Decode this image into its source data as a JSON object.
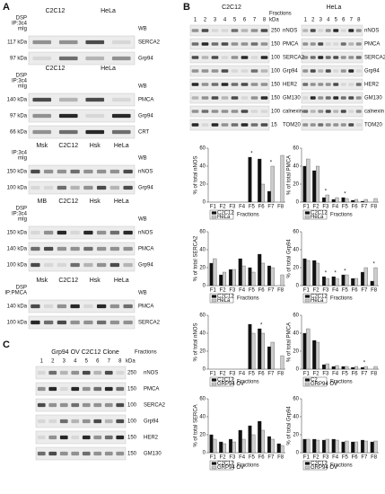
{
  "panel_a": {
    "label": "A",
    "blocks": [
      {
        "headers": [
          "C2C12",
          "HeLa"
        ],
        "rows": [
          "DSP",
          "IP:3c4",
          "mIg"
        ],
        "wb": "WB",
        "blots": [
          {
            "kda": "117 kDa",
            "name": "SERCA2"
          },
          {
            "kda": "97 kDa",
            "name": "Grp94"
          }
        ]
      },
      {
        "headers": [
          "C2C12",
          "HeLa"
        ],
        "rows": [
          "DSP",
          "IP:3c4",
          "mIg"
        ],
        "wb": "WB",
        "blots": [
          {
            "kda": "140 kDa",
            "name": "PMCA"
          },
          {
            "kda": "97 kDa",
            "name": "Grp94"
          },
          {
            "kda": "66 kDa",
            "name": "CRT"
          }
        ]
      },
      {
        "headers": [
          "Msk",
          "C2C12",
          "Hsk",
          "HeLa"
        ],
        "rows": [
          "IP:3c4",
          "mIg"
        ],
        "wb": "WB",
        "blots": [
          {
            "kda": "150 kDa",
            "name": "nNOS"
          },
          {
            "kda": "100 kDa",
            "name": "Grp94"
          }
        ]
      },
      {
        "headers": [
          "MB",
          "C2C12",
          "Hsk",
          "HeLa"
        ],
        "rows": [
          "DSP",
          "IP:3c4",
          "mIg"
        ],
        "wb": "WB",
        "blots": [
          {
            "kda": "150 kDa",
            "name": "nNOS"
          },
          {
            "kda": "140 kDa",
            "name": "PMCA"
          },
          {
            "kda": "100 kDa",
            "name": "Grp94"
          }
        ]
      },
      {
        "headers": [
          "Msk",
          "C2C12",
          "Hsk",
          "HeLa"
        ],
        "rows": [
          "DSP",
          "IP:PMCA"
        ],
        "wb": "WB",
        "blots": [
          {
            "kda": "140 kDa",
            "name": "PMCA"
          },
          {
            "kda": "100 kDa",
            "name": "SERCA2"
          }
        ]
      }
    ]
  },
  "panel_b": {
    "label": "B",
    "headers": [
      "C2C12",
      "HeLa"
    ],
    "fractions": "Fractions",
    "kda": "kDa",
    "lanes": [
      "1",
      "2",
      "3",
      "4",
      "5",
      "6",
      "7",
      "8"
    ],
    "blots": [
      {
        "kda": "250",
        "name": "nNOS"
      },
      {
        "kda": "150",
        "name": "PMCA"
      },
      {
        "kda": "100",
        "name": "SERCA2"
      },
      {
        "kda": "100",
        "name": "Grp94"
      },
      {
        "kda": "150",
        "name": "HER2"
      },
      {
        "kda": "150",
        "name": "GM130"
      },
      {
        "kda": "100",
        "name": "calnexin"
      },
      {
        "kda": "15",
        "name": "TOM20"
      }
    ]
  },
  "panel_c": {
    "label": "C",
    "title": "Grp94 OV C2C12 Clone",
    "fractions": "Fractions",
    "kda": "kDa",
    "lanes": [
      "1",
      "2",
      "3",
      "4",
      "5",
      "6",
      "7",
      "8"
    ],
    "blots": [
      {
        "kda": "250",
        "name": "nNOS"
      },
      {
        "kda": "150",
        "name": "PMCA"
      },
      {
        "kda": "100",
        "name": "SERCA2"
      },
      {
        "kda": "100",
        "name": "Grp94"
      },
      {
        "kda": "150",
        "name": "HER2"
      },
      {
        "kda": "150",
        "name": "GM130"
      }
    ]
  },
  "chart_data": [
    {
      "type": "bar",
      "ylabel": "% of total nNOS",
      "xlabel": "Fractions",
      "categories": [
        "F1",
        "F2",
        "F3",
        "F4",
        "F5",
        "F6",
        "F7",
        "F8"
      ],
      "ylim": [
        0,
        60
      ],
      "yticks": [
        0,
        20,
        40,
        60
      ],
      "series": [
        {
          "name": "C2C12",
          "color": "#111111",
          "values": [
            0,
            0,
            0,
            0,
            50,
            48,
            12,
            0
          ]
        },
        {
          "name": "HeLa",
          "color": "#cccccc",
          "values": [
            0,
            0,
            0,
            0,
            0,
            20,
            40,
            52
          ]
        }
      ],
      "annotations": [
        {
          "text": "*",
          "category": 4
        },
        {
          "text": "*",
          "category": 6
        }
      ]
    },
    {
      "type": "bar",
      "ylabel": "% of total PMCA",
      "xlabel": "Fractions",
      "categories": [
        "F1",
        "F2",
        "F3",
        "F4",
        "F5",
        "F6",
        "F7",
        "F8"
      ],
      "ylim": [
        0,
        60
      ],
      "yticks": [
        0,
        20,
        40,
        60
      ],
      "series": [
        {
          "name": "C2C12",
          "color": "#111111",
          "values": [
            40,
            35,
            5,
            3,
            5,
            2,
            1,
            0
          ]
        },
        {
          "name": "HeLa",
          "color": "#cccccc",
          "values": [
            48,
            40,
            8,
            5,
            4,
            3,
            3,
            4
          ]
        }
      ],
      "annotations": [
        {
          "text": "*",
          "category": 2
        },
        {
          "text": "*",
          "category": 4
        }
      ]
    },
    {
      "type": "bar",
      "ylabel": "% of total SERCA2",
      "xlabel": "Fractions",
      "categories": [
        "F1",
        "F2",
        "F3",
        "F4",
        "F5",
        "F6",
        "F7",
        "F8"
      ],
      "ylim": [
        0,
        60
      ],
      "yticks": [
        0,
        20,
        40,
        60
      ],
      "series": [
        {
          "name": "C2C12",
          "color": "#111111",
          "values": [
            25,
            12,
            18,
            30,
            20,
            35,
            22,
            0
          ]
        },
        {
          "name": "HeLa",
          "color": "#cccccc",
          "values": [
            30,
            15,
            18,
            22,
            15,
            25,
            20,
            12
          ]
        }
      ],
      "annotations": []
    },
    {
      "type": "bar",
      "ylabel": "% of total Grp94",
      "xlabel": "Fractions",
      "categories": [
        "F1",
        "F2",
        "F3",
        "F4",
        "F5",
        "F6",
        "F7",
        "F8"
      ],
      "ylim": [
        0,
        60
      ],
      "yticks": [
        0,
        20,
        40,
        60
      ],
      "series": [
        {
          "name": "C2C12",
          "color": "#111111",
          "values": [
            30,
            28,
            10,
            10,
            12,
            8,
            15,
            5
          ]
        },
        {
          "name": "HeLa",
          "color": "#cccccc",
          "values": [
            28,
            25,
            8,
            8,
            12,
            8,
            20,
            20
          ]
        }
      ],
      "annotations": [
        {
          "text": "*",
          "category": 2
        },
        {
          "text": "*",
          "category": 3
        },
        {
          "text": "*",
          "category": 4
        },
        {
          "text": "*",
          "category": 7
        }
      ]
    },
    {
      "type": "bar",
      "ylabel": "% of total nNOS",
      "xlabel": "Fractions",
      "categories": [
        "F1",
        "F2",
        "F3",
        "F4",
        "F5",
        "F6",
        "F7",
        "F8"
      ],
      "ylim": [
        0,
        60
      ],
      "yticks": [
        0,
        20,
        40,
        60
      ],
      "series": [
        {
          "name": "C2C12",
          "color": "#111111",
          "values": [
            0,
            0,
            0,
            0,
            50,
            45,
            25,
            0
          ]
        },
        {
          "name": "GRP94 OV",
          "color": "#cccccc",
          "values": [
            0,
            0,
            0,
            0,
            40,
            40,
            30,
            15
          ]
        }
      ],
      "annotations": [
        {
          "text": "*",
          "category": 5
        }
      ]
    },
    {
      "type": "bar",
      "ylabel": "% of total PMCA",
      "xlabel": "Fractions",
      "categories": [
        "F1",
        "F2",
        "F3",
        "F4",
        "F5",
        "F6",
        "F7",
        "F8"
      ],
      "ylim": [
        0,
        60
      ],
      "yticks": [
        0,
        20,
        40,
        60
      ],
      "series": [
        {
          "name": "C2",
          "color": "#111111",
          "values": [
            40,
            32,
            5,
            3,
            3,
            2,
            2,
            0
          ]
        },
        {
          "name": "GRP94 OV",
          "color": "#cccccc",
          "values": [
            45,
            30,
            6,
            4,
            3,
            3,
            3,
            3
          ]
        }
      ],
      "annotations": [
        {
          "text": "*",
          "category": 6
        }
      ]
    },
    {
      "type": "bar",
      "ylabel": "% of total SERCA",
      "xlabel": "Fractions",
      "categories": [
        "F1",
        "F2",
        "F3",
        "F4",
        "F5",
        "F6",
        "F7",
        "F8"
      ],
      "ylim": [
        0,
        60
      ],
      "yticks": [
        0,
        20,
        40,
        60
      ],
      "series": [
        {
          "name": "C2C12",
          "color": "#111111",
          "values": [
            20,
            12,
            15,
            25,
            30,
            35,
            18,
            10
          ]
        },
        {
          "name": "GRP94 OV",
          "color": "#cccccc",
          "values": [
            15,
            10,
            12,
            15,
            20,
            25,
            15,
            8
          ]
        }
      ],
      "annotations": []
    },
    {
      "type": "bar",
      "ylabel": "% of total Grp94",
      "xlabel": "Fractions",
      "categories": [
        "F1",
        "F2",
        "F3",
        "F4",
        "F5",
        "F6",
        "F7",
        "F8"
      ],
      "ylim": [
        0,
        60
      ],
      "yticks": [
        0,
        20,
        40,
        60
      ],
      "series": [
        {
          "name": "C2C12",
          "color": "#111111",
          "values": [
            15,
            15,
            14,
            15,
            12,
            12,
            14,
            12
          ]
        },
        {
          "name": "GRP94 OV",
          "color": "#cccccc",
          "values": [
            15,
            14,
            15,
            14,
            13,
            12,
            13,
            13
          ]
        }
      ],
      "annotations": []
    }
  ]
}
